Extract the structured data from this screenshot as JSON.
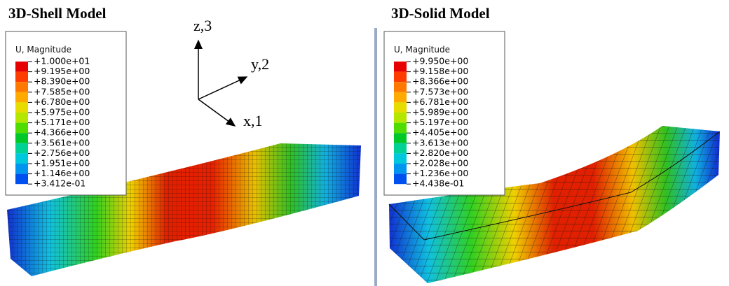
{
  "panels": [
    {
      "title": "3D-Shell Model",
      "legend": {
        "title": "U, Magnitude",
        "labels": [
          "+1.000e+01",
          "+9.195e+00",
          "+8.390e+00",
          "+7.585e+00",
          "+6.780e+00",
          "+5.975e+00",
          "+5.171e+00",
          "+4.366e+00",
          "+3.561e+00",
          "+2.756e+00",
          "+1.951e+00",
          "+1.146e+00",
          "+3.412e-01"
        ]
      }
    },
    {
      "title": "3D-Solid Model",
      "legend": {
        "title": "U, Magnitude",
        "labels": [
          "+9.950e+00",
          "+9.158e+00",
          "+8.366e+00",
          "+7.573e+00",
          "+6.781e+00",
          "+5.989e+00",
          "+5.197e+00",
          "+4.405e+00",
          "+3.613e+00",
          "+2.820e+00",
          "+2.028e+00",
          "+1.236e+00",
          "+4.438e-01"
        ]
      }
    }
  ],
  "triad": {
    "z": "z,3",
    "y": "y,2",
    "x": "x,1"
  }
}
